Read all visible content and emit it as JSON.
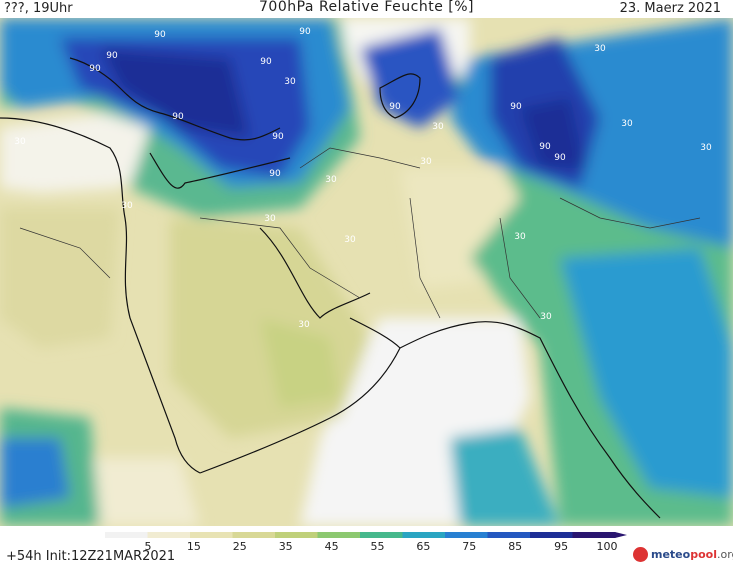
{
  "header": {
    "left": "???, 19Uhr",
    "title": "700hPa Relative Feuchte [%]",
    "date": "23. Maerz 2021"
  },
  "footer": {
    "run": "+54h Init:12Z21MAR2021"
  },
  "scale": {
    "labels": [
      "5",
      "15",
      "25",
      "35",
      "45",
      "55",
      "65",
      "75",
      "85",
      "95",
      "100"
    ],
    "colors": [
      "#f2f2f2",
      "#f1ecd2",
      "#e8e3b4",
      "#d8d896",
      "#bfd07a",
      "#8cc870",
      "#46b88c",
      "#2aa5c2",
      "#2880d2",
      "#2558c0",
      "#1e2f96",
      "#2a1670"
    ]
  },
  "map": {
    "contour_labels": [
      "90",
      "90",
      "90",
      "90",
      "90",
      "90",
      "90",
      "90",
      "90",
      "90",
      "90",
      "90",
      "30",
      "30",
      "30",
      "30",
      "30",
      "30",
      "30",
      "30",
      "30",
      "30",
      "30",
      "30",
      "30",
      "30"
    ]
  },
  "logo": {
    "name": "meteo",
    "name_b": "pool",
    "suffix": ".org"
  }
}
